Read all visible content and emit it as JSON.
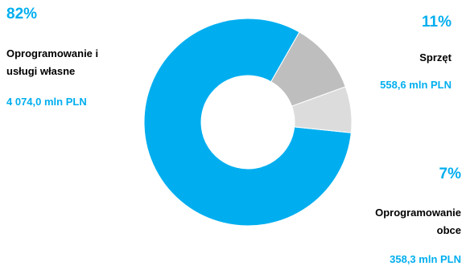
{
  "colors": {
    "accent": "#00AEEF",
    "software_own": "#00AEEF",
    "hardware": "#BEBEBE",
    "software_external": "#DCDCDC"
  },
  "chart_data": {
    "type": "pie",
    "donut": true,
    "unit": "mln PLN",
    "slices": [
      {
        "label": "Oprogramowanie i usługi własne",
        "label_line1": "Oprogramowanie i",
        "label_line2": "usługi własne",
        "percent_label": "82%",
        "value": 4074.0,
        "value_label": "4 074,0 mln PLN",
        "color": "#00AEEF"
      },
      {
        "label": "Sprzęt",
        "percent_label": "11%",
        "value": 558.6,
        "value_label": "558,6 mln PLN",
        "color": "#BEBEBE"
      },
      {
        "label": "Oprogramowanie obce",
        "label_line1": "Oprogramowanie",
        "label_line2": "obce",
        "percent_label": "7%",
        "value": 358.3,
        "value_label": "358,3 mln PLN",
        "color": "#DCDCDC"
      }
    ]
  }
}
